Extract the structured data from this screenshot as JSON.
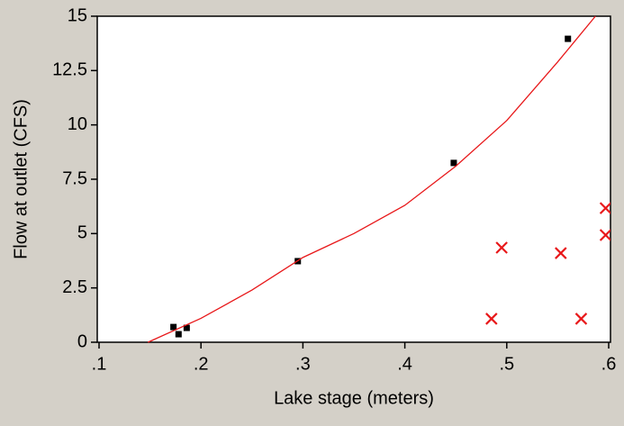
{
  "chart_data": {
    "type": "scatter",
    "xlabel": "Lake stage (meters)",
    "ylabel": "Flow at outlet (CFS)",
    "xlim": [
      0.1,
      0.6
    ],
    "xticks": [
      {
        "value": 0.1,
        "label": ".1"
      },
      {
        "value": 0.2,
        "label": ".2"
      },
      {
        "value": 0.3,
        "label": ".3"
      },
      {
        "value": 0.4,
        "label": ".4"
      },
      {
        "value": 0.5,
        "label": ".5"
      },
      {
        "value": 0.6,
        "label": ".6"
      }
    ],
    "ylim": [
      0,
      15
    ],
    "yticks": [
      0,
      2.5,
      5,
      7.5,
      10,
      12.5,
      15
    ],
    "series": [
      {
        "marker": "square",
        "color": "#000000",
        "x": [
          0.173,
          0.178,
          0.186,
          0.295,
          0.448,
          0.56
        ],
        "values": [
          0.7,
          0.37,
          0.66,
          3.73,
          8.25,
          13.96
        ]
      },
      {
        "marker": "x",
        "color": "#e8181a",
        "x": [
          0.485,
          0.495,
          0.553,
          0.573,
          0.597,
          0.597
        ],
        "values": [
          1.08,
          4.35,
          4.1,
          1.08,
          6.17,
          4.93
        ]
      },
      {
        "marker": "line",
        "color": "#e8181a",
        "x": [
          0.148,
          0.2,
          0.25,
          0.3,
          0.35,
          0.4,
          0.45,
          0.5,
          0.55,
          0.587
        ],
        "values": [
          0,
          1.1,
          2.4,
          3.9,
          5.0,
          6.3,
          8.1,
          10.2,
          12.9,
          15
        ]
      }
    ]
  }
}
